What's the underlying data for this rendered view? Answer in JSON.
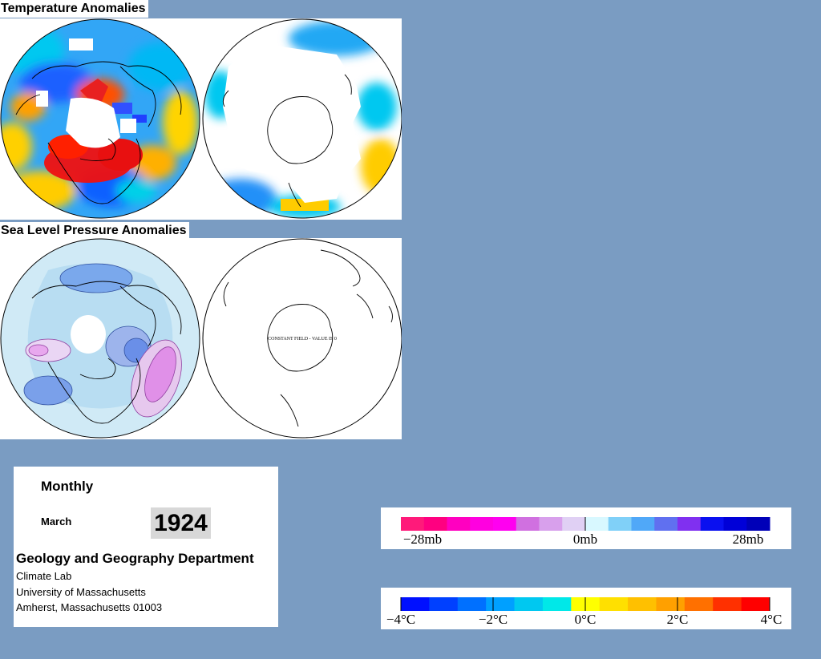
{
  "temperature_section": {
    "title": "Temperature Anomalies"
  },
  "pressure_section": {
    "title": "Sea Level Pressure Anomalies",
    "south_map_note": "CONSTANT FIELD - VALUE IS 0"
  },
  "info": {
    "period": "Monthly",
    "month": "March",
    "year": "1924",
    "department": "Geology and Geography Department",
    "lab": "Climate Lab",
    "university": "University of Massachusetts",
    "address": "Amherst, Massachusetts 01003"
  },
  "pressure_legend": {
    "labels": [
      "−28mb",
      "0mb",
      "28mb"
    ],
    "colors": [
      "#ff1a7a",
      "#ff0080",
      "#ff00c0",
      "#ff00e0",
      "#ff00f0",
      "#d070e0",
      "#d8a0ec",
      "#e0d0f4",
      "#d8f8ff",
      "#80d0f8",
      "#50a8f8",
      "#6070f0",
      "#8030f0",
      "#0a10f0",
      "#0000d8",
      "#0000b8"
    ]
  },
  "temperature_legend": {
    "labels": [
      "−4°C",
      "−2°C",
      "0°C",
      "2°C",
      "4°C"
    ],
    "colors": [
      "#0010ff",
      "#0040ff",
      "#0070ff",
      "#00a0ff",
      "#00c8f0",
      "#00e8e8",
      "#ffff00",
      "#ffe000",
      "#ffc000",
      "#ffa000",
      "#ff7000",
      "#ff3000",
      "#ff0000"
    ]
  }
}
